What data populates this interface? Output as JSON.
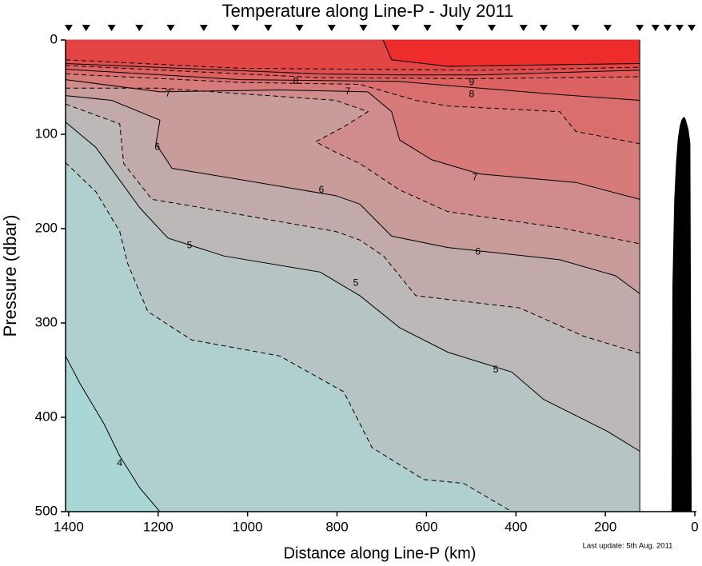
{
  "chart_data": {
    "type": "contour",
    "title": "Temperature along Line-P - July 2011",
    "x_label": "Distance along Line-P (km)",
    "y_label": "Pressure (dbar)",
    "note": "Last update: 5th Aug. 2011",
    "xlim": [
      1407,
      0
    ],
    "ylim": [
      500,
      0
    ],
    "xticks": [
      1400,
      1200,
      1000,
      800,
      600,
      400,
      200,
      0
    ],
    "yticks": [
      0,
      100,
      200,
      300,
      400,
      500
    ],
    "base_color": "#a9d7d6",
    "stations": [
      1400,
      1361,
      1304,
      1242,
      1172,
      1098,
      1027,
      954,
      884,
      812,
      741,
      669,
      598,
      526,
      454,
      383,
      338,
      267,
      195,
      123,
      88,
      61,
      34,
      7
    ],
    "contours": [
      {
        "level": 4,
        "dashed": false,
        "color": "#b0cfcf",
        "x": [
          1407,
          1375,
          1321,
          1286,
          1241,
          1196
        ],
        "y": [
          335,
          364,
          407,
          441,
          475,
          500
        ]
      },
      {
        "level": 4.5,
        "dashed": true,
        "color": "#b6c4c4",
        "x": [
          1407,
          1339,
          1286,
          1268,
          1223,
          1125,
          928,
          785,
          722,
          606,
          517,
          409
        ],
        "y": [
          130,
          161,
          203,
          237,
          288,
          318,
          335,
          373,
          432,
          466,
          470,
          500
        ]
      },
      {
        "level": 5,
        "dashed": false,
        "color": "#bcb8b8",
        "x": [
          1407,
          1339,
          1241,
          1178,
          1053,
          838,
          749,
          660,
          552,
          409,
          338,
          195,
          123
        ],
        "y": [
          87,
          114,
          178,
          210,
          229,
          246,
          271,
          305,
          331,
          352,
          381,
          415,
          436
        ]
      },
      {
        "level": 5.5,
        "dashed": true,
        "color": "#c2aaaa",
        "x": [
          1407,
          1286,
          1277,
          1214,
          1125,
          803,
          749,
          696,
          624,
          392,
          249,
          123
        ],
        "y": [
          68,
          89,
          131,
          169,
          176,
          203,
          212,
          229,
          271,
          284,
          314,
          332
        ]
      },
      {
        "level": 6,
        "dashed": false,
        "color": "#c99c9c",
        "x": [
          1407,
          1304,
          1196,
          1205,
          1169,
          1017,
          803,
          749,
          678,
          552,
          302,
          177,
          123
        ],
        "y": [
          59,
          64,
          85,
          110,
          136,
          148,
          165,
          174,
          208,
          220,
          233,
          250,
          269
        ]
      },
      {
        "level": 6.5,
        "dashed": true,
        "color": "#d08c8c",
        "x": [
          1407,
          1196,
          803,
          731,
          785,
          848,
          803,
          749,
          660,
          552,
          302,
          123
        ],
        "y": [
          51,
          51,
          64,
          76,
          92,
          108,
          119,
          131,
          159,
          182,
          199,
          216
        ]
      },
      {
        "level": 7,
        "dashed": false,
        "color": "#d67a7a",
        "x": [
          1407,
          1196,
          928,
          731,
          678,
          660,
          588,
          481,
          266,
          123
        ],
        "y": [
          42,
          55,
          53,
          55,
          76,
          106,
          127,
          142,
          151,
          169
        ]
      },
      {
        "level": 7.5,
        "dashed": true,
        "color": "#da6e6e",
        "x": [
          1407,
          1017,
          749,
          624,
          552,
          302,
          266,
          123
        ],
        "y": [
          36,
          45,
          47,
          64,
          70,
          76,
          97,
          110
        ]
      },
      {
        "level": 8,
        "dashed": false,
        "color": "#dd6262",
        "x": [
          1407,
          1017,
          660,
          481,
          302,
          123
        ],
        "y": [
          31,
          42,
          44,
          51,
          58,
          64
        ]
      },
      {
        "level": 8.5,
        "dashed": true,
        "color": "#df5858",
        "x": [
          1407,
          838,
          481,
          123
        ],
        "y": [
          27,
          40,
          41,
          39
        ]
      },
      {
        "level": 9,
        "dashed": false,
        "color": "#e04f4f",
        "x": [
          1407,
          838,
          660,
          481,
          123
        ],
        "y": [
          25,
          36,
          37,
          37,
          32
        ]
      },
      {
        "level": 9.5,
        "dashed": true,
        "color": "#e34444",
        "x": [
          1407,
          1017,
          481,
          123
        ],
        "y": [
          21,
          30,
          32,
          29
        ]
      },
      {
        "level": 10,
        "dashed": false,
        "color": "#ee2c2c",
        "x": [
          697,
          678,
          552,
          123
        ],
        "y": [
          0,
          21,
          28,
          25
        ]
      }
    ],
    "contour_labels": [
      {
        "value": 4,
        "x": 1286,
        "y": 449
      },
      {
        "value": 5,
        "x": 1130,
        "y": 218
      },
      {
        "value": 5,
        "x": 758,
        "y": 258
      },
      {
        "value": 5,
        "x": 445,
        "y": 350
      },
      {
        "value": 6,
        "x": 1202,
        "y": 114
      },
      {
        "value": 6,
        "x": 835,
        "y": 159
      },
      {
        "value": 6,
        "x": 485,
        "y": 225
      },
      {
        "value": 7,
        "x": 1178,
        "y": 57
      },
      {
        "value": 7,
        "x": 776,
        "y": 55
      },
      {
        "value": 7,
        "x": 492,
        "y": 146
      },
      {
        "value": 8,
        "x": 892,
        "y": 44
      },
      {
        "value": 8,
        "x": 499,
        "y": 58
      },
      {
        "value": 9,
        "x": 499,
        "y": 45
      }
    ],
    "bathymetry": {
      "color": "#000000",
      "x": [
        52,
        50,
        46,
        42,
        38,
        34,
        30,
        26,
        22,
        18,
        14,
        10,
        7
      ],
      "y": [
        500,
        260,
        170,
        130,
        105,
        92,
        85,
        82,
        82,
        88,
        95,
        110,
        500
      ]
    }
  }
}
